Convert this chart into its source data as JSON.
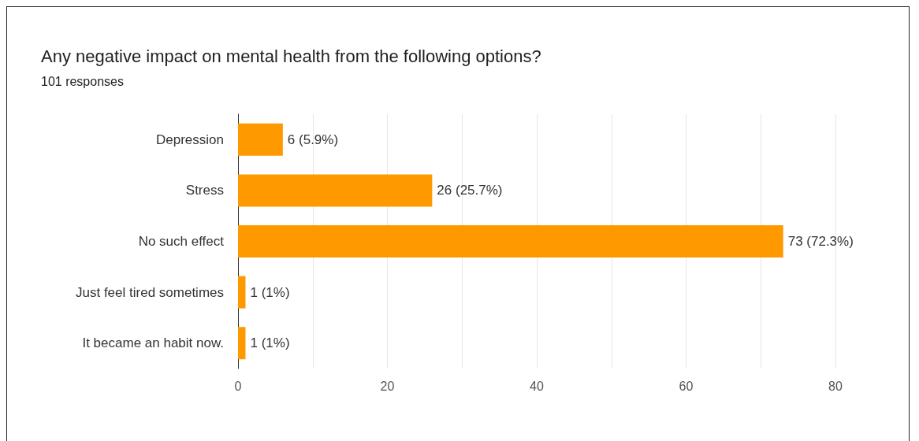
{
  "chart_data": {
    "type": "bar",
    "orientation": "horizontal",
    "title": "Any negative impact on mental health from the following options?",
    "subtitle": "101 responses",
    "categories": [
      "Depression",
      "Stress",
      "No such effect",
      "Just feel tired sometimes",
      "It became an habit now."
    ],
    "values": [
      6,
      26,
      73,
      1,
      1
    ],
    "value_labels": [
      "6 (5.9%)",
      "26 (25.7%)",
      "73 (72.3%)",
      "1 (1%)",
      "1 (1%)"
    ],
    "color": "#ff9900",
    "xlim": [
      0,
      80
    ],
    "xticks": [
      0,
      {
        "value": 10,
        "label": null
      },
      20,
      {
        "value": 30,
        "label": null
      },
      40,
      {
        "value": 50,
        "label": null
      },
      60,
      {
        "value": 70,
        "label": null
      },
      80
    ],
    "grid": "x"
  }
}
